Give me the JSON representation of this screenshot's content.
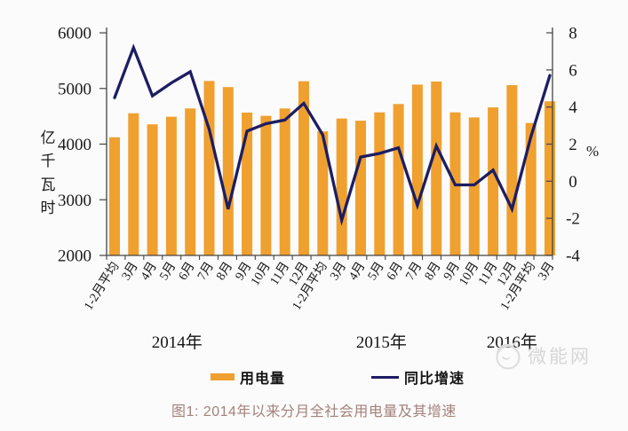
{
  "caption": "图1: 2014年以来分月全社会用电量及其增速",
  "watermark": {
    "text": "微能网",
    "logo": "cloud-face-logo"
  },
  "chart_data": {
    "type": "bar",
    "subtype": "bar-line-combo",
    "categories": [
      "1-2月平均",
      "3月",
      "4月",
      "5月",
      "6月",
      "7月",
      "8月",
      "9月",
      "10月",
      "11月",
      "12月",
      "1-2月平均",
      "3月",
      "4月",
      "5月",
      "6月",
      "7月",
      "8月",
      "9月",
      "10月",
      "11月",
      "12月",
      "1-2月平均",
      "3月"
    ],
    "series": [
      {
        "name": "用电量",
        "type": "bar",
        "axis": "left",
        "unit": "亿千瓦时",
        "color": "#efa02f",
        "values": [
          4122,
          4555,
          4356,
          4492,
          4640,
          5135,
          5025,
          4568,
          4508,
          4640,
          5130,
          4230,
          4460,
          4420,
          4570,
          4720,
          5070,
          5125,
          4570,
          4480,
          4660,
          5060,
          4380,
          4770
        ]
      },
      {
        "name": "同比增速",
        "type": "line",
        "axis": "right",
        "unit": "%",
        "color": "#1d1d62",
        "values": [
          4.5,
          7.2,
          4.6,
          5.3,
          5.9,
          2.8,
          -1.5,
          2.7,
          3.1,
          3.3,
          4.2,
          2.5,
          -2.1,
          1.3,
          1.5,
          1.8,
          -1.3,
          1.9,
          -0.2,
          -0.2,
          0.6,
          -1.5,
          2.4,
          5.7
        ]
      }
    ],
    "left_axis": {
      "label": "亿千瓦时",
      "min": 2000,
      "max": 6000,
      "ticks": [
        6000,
        5000,
        4000,
        3000,
        2000
      ]
    },
    "right_axis": {
      "label": "%",
      "min": -4,
      "max": 8,
      "ticks": [
        8,
        6,
        4,
        2,
        0,
        -2,
        -4
      ]
    },
    "year_labels": [
      {
        "label": "2014年",
        "at_index": 3.3
      },
      {
        "label": "2015年",
        "at_index": 14.1
      },
      {
        "label": "2016年",
        "at_index": 21.0
      }
    ],
    "legend": [
      {
        "label": "用电量",
        "swatch": "bar",
        "color": "#efa02f"
      },
      {
        "label": "同比增速",
        "swatch": "line",
        "color": "#1d1d62"
      }
    ],
    "grid": false,
    "legend_position": "bottom"
  }
}
